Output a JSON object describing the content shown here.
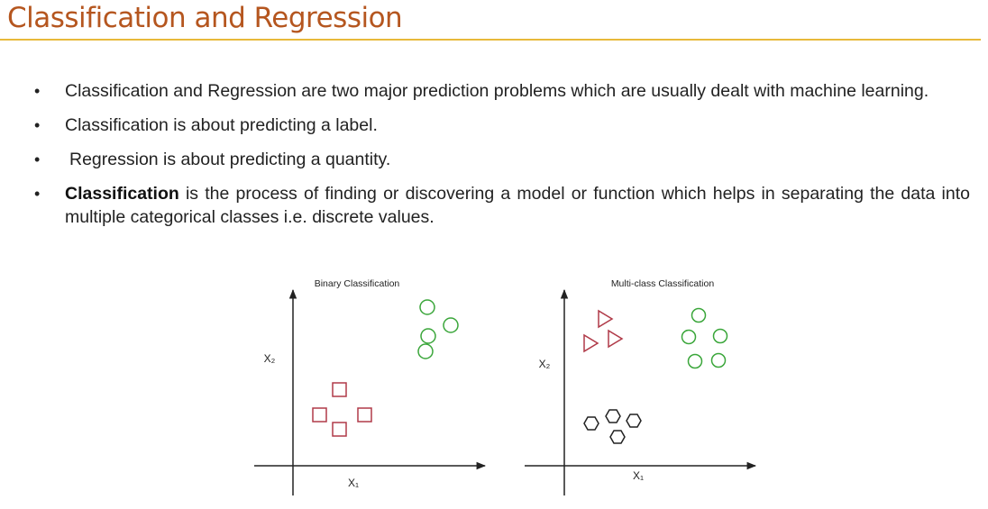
{
  "slide": {
    "title": "Classification and Regression"
  },
  "bullets": [
    {
      "text": "Classification and Regression are two major prediction problems which are usually dealt with machine learning."
    },
    {
      "text": "Classification is about predicting a label."
    },
    {
      "text": "Regression is about predicting a quantity."
    },
    {
      "bold": "Classification",
      "text": " is the process of finding or discovering a model or function which helps in separating the data into multiple categorical classes i.e. discrete values."
    }
  ],
  "colors": {
    "title": "#b5561f",
    "rule": "#e8b93a",
    "red_class": "#b03a48",
    "green_class": "#3aa63a",
    "black_class": "#222222"
  },
  "figures": {
    "binary": {
      "title": "Binary Classification",
      "xlabel": "X₁",
      "ylabel": "X₂"
    },
    "multiclass": {
      "title": "Multi-class Classification",
      "xlabel": "X₁",
      "ylabel": "X₂"
    }
  }
}
